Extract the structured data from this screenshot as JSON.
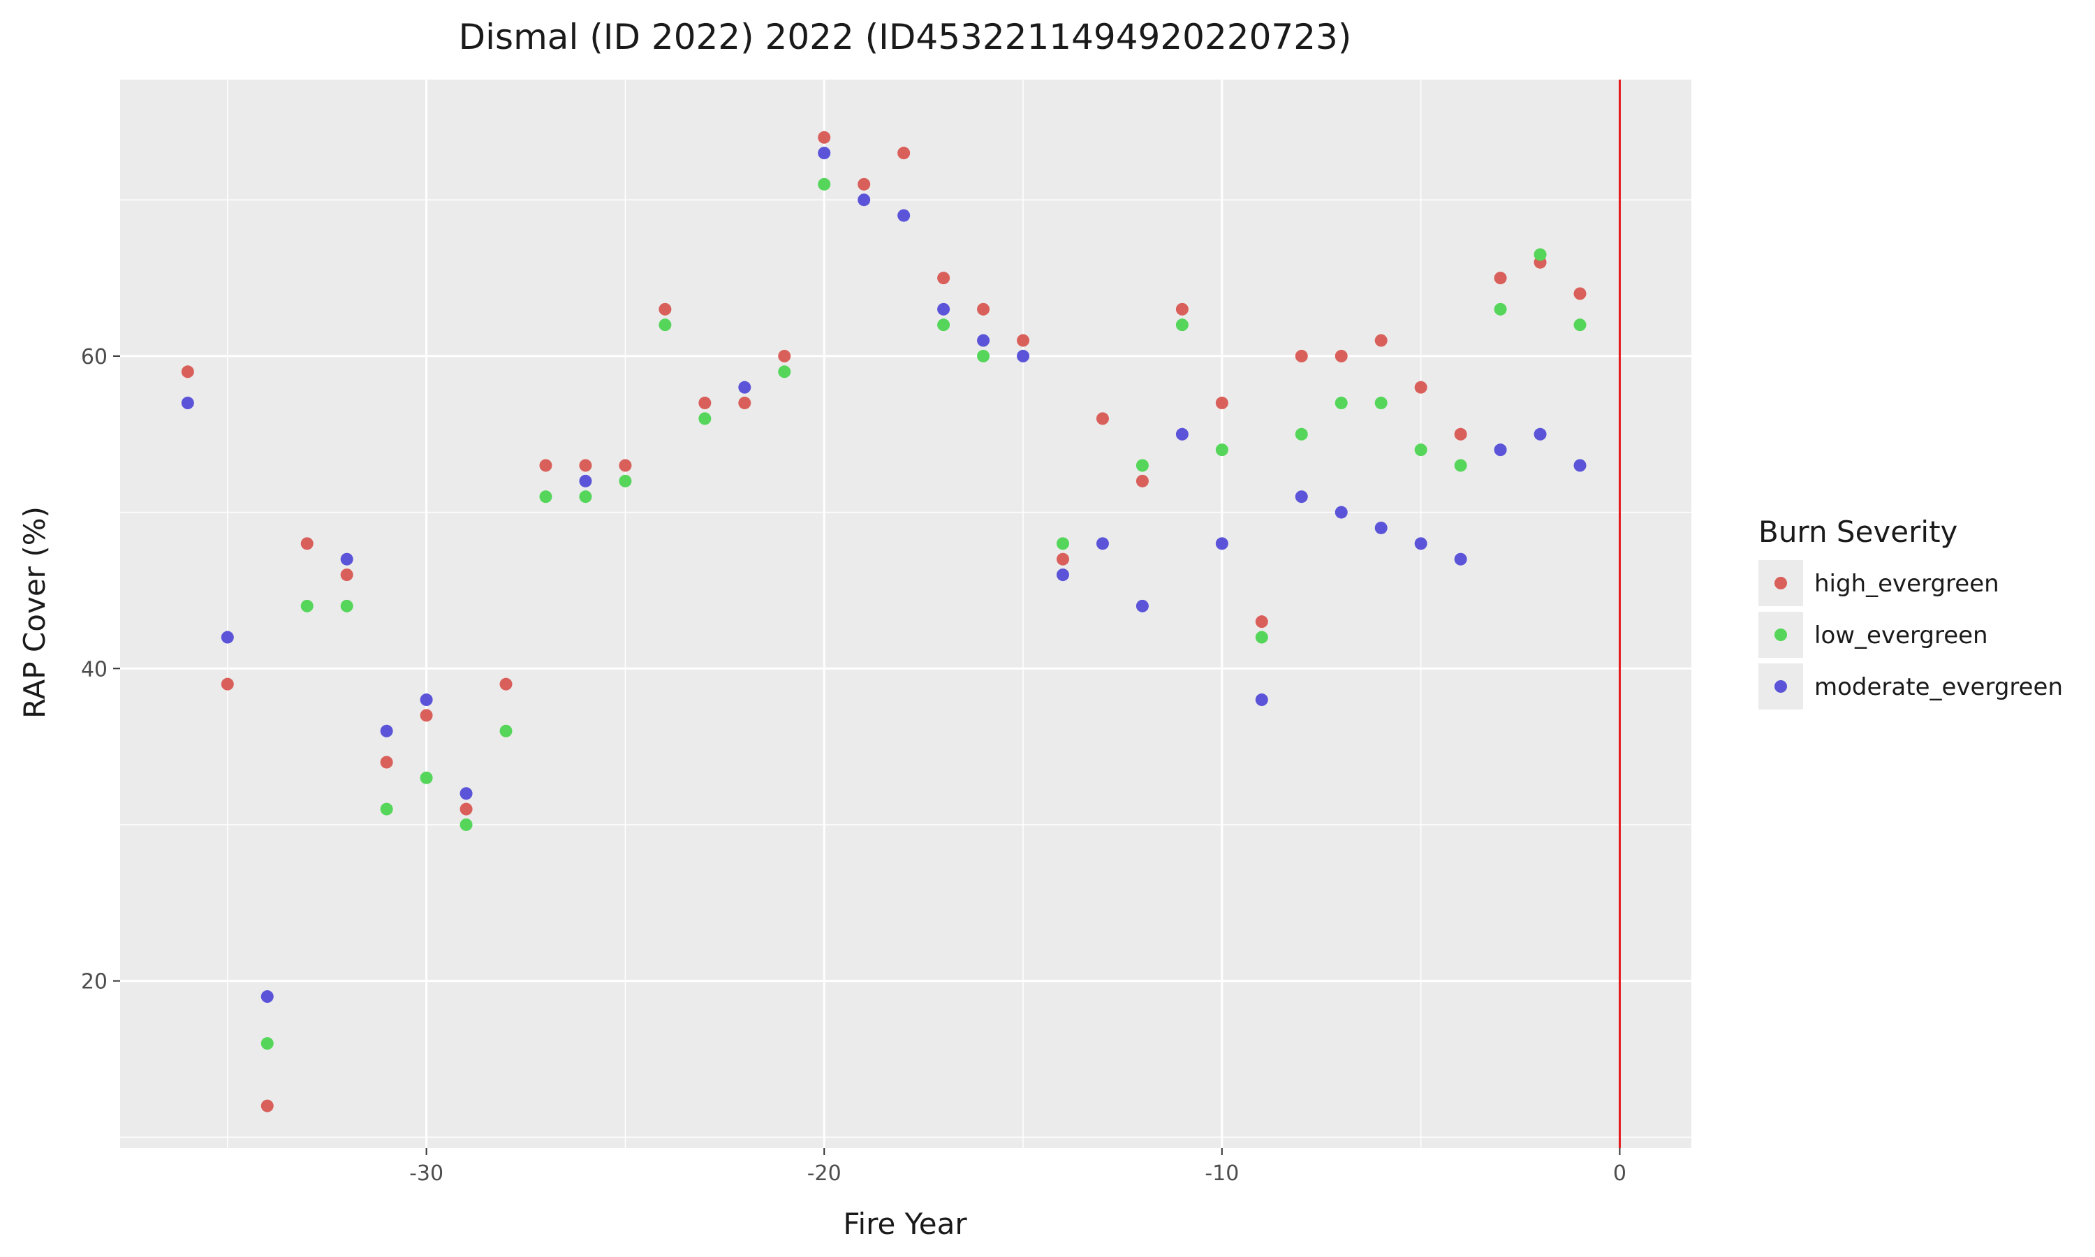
{
  "chart_data": {
    "type": "scatter",
    "title": "Dismal (ID 2022) 2022 (ID4532211494920220723)",
    "xlabel": "Fire Year",
    "ylabel": "RAP Cover (%)",
    "xlim": [
      -37.7,
      1.8
    ],
    "ylim": [
      9.3,
      77.7
    ],
    "x_ticks": [
      -30,
      -20,
      -10,
      0
    ],
    "y_ticks": [
      20,
      40,
      60
    ],
    "grid": true,
    "vline": {
      "x": 0,
      "color": "#e41a1c"
    },
    "legend": {
      "title": "Burn Severity",
      "position": "right"
    },
    "series": [
      {
        "name": "high_evergreen",
        "color": "#d95f5a",
        "x": [
          -36,
          -35,
          -34,
          -33,
          -32,
          -31,
          -30,
          -29,
          -28,
          -27,
          -26,
          -25,
          -24,
          -23,
          -22,
          -21,
          -20,
          -19,
          -18,
          -17,
          -16,
          -15,
          -14,
          -13,
          -12,
          -11,
          -10,
          -9,
          -8,
          -7,
          -6,
          -5,
          -4,
          -3,
          -2,
          -1
        ],
        "y": [
          59,
          39,
          12,
          48,
          46,
          34,
          37,
          31,
          39,
          53,
          53,
          53,
          63,
          57,
          57,
          60,
          74,
          71,
          73,
          65,
          63,
          61,
          47,
          56,
          52,
          63,
          57,
          43,
          60,
          60,
          61,
          58,
          55,
          65,
          66,
          64
        ]
      },
      {
        "name": "low_evergreen",
        "color": "#55d65a",
        "x": [
          -34,
          -33,
          -32,
          -31,
          -30,
          -29,
          -28,
          -27,
          -26,
          -25,
          -24,
          -23,
          -21,
          -20,
          -17,
          -16,
          -14,
          -12,
          -11,
          -10,
          -9,
          -8,
          -7,
          -6,
          -5,
          -4,
          -3,
          -2,
          -1
        ],
        "y": [
          16,
          44,
          44,
          31,
          33,
          30,
          36,
          51,
          51,
          52,
          62,
          56,
          59,
          71,
          62,
          60,
          48,
          53,
          62,
          54,
          42,
          55,
          57,
          57,
          54,
          53,
          63,
          66.5,
          62
        ]
      },
      {
        "name": "moderate_evergreen",
        "color": "#5b54d8",
        "x": [
          -36,
          -35,
          -34,
          -32,
          -31,
          -30,
          -29,
          -26,
          -22,
          -20,
          -19,
          -18,
          -17,
          -16,
          -15,
          -14,
          -13,
          -12,
          -11,
          -10,
          -9,
          -8,
          -7,
          -6,
          -5,
          -4,
          -3,
          -2,
          -1
        ],
        "y": [
          57,
          42,
          19,
          47,
          36,
          38,
          32,
          52,
          58,
          73,
          70,
          69,
          63,
          61,
          60,
          46,
          48,
          44,
          55,
          48,
          38,
          51,
          50,
          49,
          48,
          47,
          54,
          55,
          53
        ]
      }
    ]
  }
}
